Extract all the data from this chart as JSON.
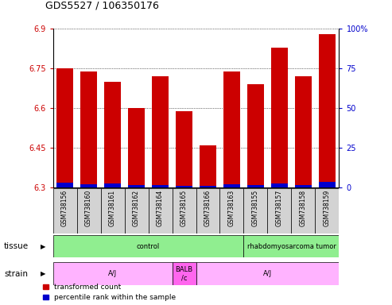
{
  "title": "GDS5527 / 106350176",
  "samples": [
    "GSM738156",
    "GSM738160",
    "GSM738161",
    "GSM738162",
    "GSM738164",
    "GSM738165",
    "GSM738166",
    "GSM738163",
    "GSM738155",
    "GSM738157",
    "GSM738158",
    "GSM738159"
  ],
  "red_values": [
    6.75,
    6.74,
    6.7,
    6.6,
    6.72,
    6.59,
    6.46,
    6.74,
    6.69,
    6.83,
    6.72,
    6.88
  ],
  "blue_values": [
    6.318,
    6.312,
    6.315,
    6.31,
    6.308,
    6.307,
    6.307,
    6.313,
    6.31,
    6.315,
    6.31,
    6.322
  ],
  "ymin": 6.3,
  "ymax": 6.9,
  "yticks": [
    6.3,
    6.45,
    6.6,
    6.75,
    6.9
  ],
  "ytick_labels": [
    "6.3",
    "6.45",
    "6.6",
    "6.75",
    "6.9"
  ],
  "y2ticks": [
    0,
    25,
    50,
    75,
    100
  ],
  "y2tick_labels": [
    "0",
    "25",
    "50",
    "75",
    "100%"
  ],
  "bar_width": 0.7,
  "red_color": "#CC0000",
  "blue_color": "#0000CC",
  "bg_sample": "#D3D3D3",
  "tissue_green_light": "#90EE90",
  "strain_pink_light": "#FFB3FF",
  "strain_pink_dark": "#FF66EE",
  "legend_red": "transformed count",
  "legend_blue": "percentile rank within the sample"
}
